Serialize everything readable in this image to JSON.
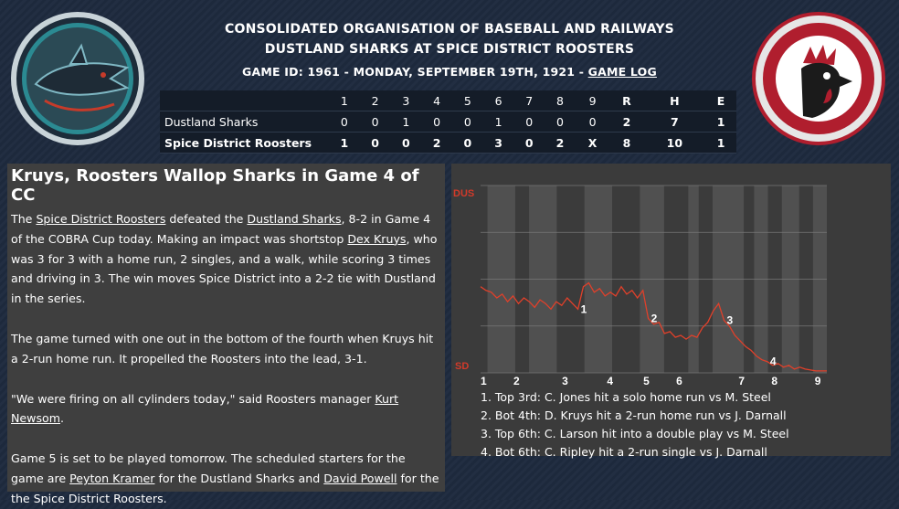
{
  "header": {
    "org": "CONSOLIDATED ORGANISATION OF BASEBALL AND RAILWAYS",
    "matchup": "DUSTLAND SHARKS AT SPICE DISTRICT ROOSTERS",
    "game_id": "GAME ID: 1961 - MONDAY, SEPTEMBER 19TH, 1921 - ",
    "game_log_link": "GAME LOG"
  },
  "logos": {
    "away": "dustland-sharks-logo",
    "home": "spice-district-roosters-logo"
  },
  "boxscore": {
    "columns": [
      "",
      "1",
      "2",
      "3",
      "4",
      "5",
      "6",
      "7",
      "8",
      "9",
      "R",
      "H",
      "E"
    ],
    "rows": [
      {
        "team": "Dustland Sharks",
        "cells": [
          "0",
          "0",
          "1",
          "0",
          "0",
          "1",
          "0",
          "0",
          "0",
          "2",
          "7",
          "1"
        ]
      },
      {
        "team": "Spice District Roosters",
        "cells": [
          "1",
          "0",
          "0",
          "2",
          "0",
          "3",
          "0",
          "2",
          "X",
          "8",
          "10",
          "1"
        ]
      }
    ]
  },
  "story": {
    "headline": "Kruys, Roosters Wallop Sharks in Game 4 of CC",
    "p1": {
      "a": "The ",
      "link1": "Spice District Roosters",
      "b": " defeated the ",
      "link2": "Dustland Sharks",
      "c": ", 8-2 in Game 4 of the COBRA Cup today. Making an impact was shortstop ",
      "link3": "Dex Kruys",
      "d": ", who was 3 for 3 with a home run, 2 singles, and a walk, while scoring 3 times and driving in 3. The win moves Spice District into a 2-2 tie with Dustland in the series."
    },
    "p2": "The game turned with one out in the bottom of the fourth when Kruys hit a 2-run home run. It propelled the Roosters into the lead, 3-1.",
    "p3": {
      "a": "\"We were firing on all cylinders today,\" said Roosters manager ",
      "link": "Kurt Newsom",
      "b": "."
    },
    "p4": {
      "a": "Game 5 is set to be played tomorrow. The scheduled starters for the game are ",
      "link1": "Peyton Kramer",
      "b": " for the Dustland Sharks and ",
      "link2": "David Powell",
      "c": " for the the Spice District Roosters."
    }
  },
  "chart_data": {
    "type": "line",
    "title": "",
    "y_top_label": "DUS",
    "y_bottom_label": "SD",
    "x_tick_labels": [
      "1",
      "2",
      "3",
      "4",
      "5",
      "6",
      "7",
      "8",
      "9"
    ],
    "line_color": "#e0402a",
    "ylim": [
      0,
      1
    ],
    "series": [
      {
        "values": [
          0.46,
          0.44,
          0.43,
          0.4,
          0.42,
          0.38,
          0.41,
          0.37,
          0.4,
          0.38,
          0.35,
          0.39,
          0.37,
          0.34,
          0.38,
          0.36,
          0.4,
          0.37,
          0.34,
          0.46,
          0.48,
          0.43,
          0.45,
          0.41,
          0.43,
          0.41,
          0.46,
          0.42,
          0.44,
          0.4,
          0.44,
          0.29,
          0.26,
          0.27,
          0.21,
          0.22,
          0.19,
          0.2,
          0.18,
          0.2,
          0.19,
          0.24,
          0.27,
          0.33,
          0.37,
          0.28,
          0.25,
          0.2,
          0.17,
          0.14,
          0.12,
          0.09,
          0.07,
          0.06,
          0.04,
          0.05,
          0.03,
          0.04,
          0.02,
          0.03,
          0.02,
          0.015,
          0.01,
          0.01,
          0.01
        ]
      }
    ],
    "markers": [
      {
        "label": "1",
        "index": 18
      },
      {
        "label": "2",
        "index": 31
      },
      {
        "label": "3",
        "index": 45
      },
      {
        "label": "4",
        "index": 53
      }
    ],
    "annotations": [
      "1. Top 3rd: C. Jones hit a solo home run vs M. Steel",
      "2. Bot 4th: D. Kruys hit a 2-run home run vs J. Darnall",
      "3. Top 6th: C. Larson hit into a double play vs M. Steel",
      "4. Bot 6th: C. Ripley hit a 2-run single vs J. Darnall"
    ]
  }
}
